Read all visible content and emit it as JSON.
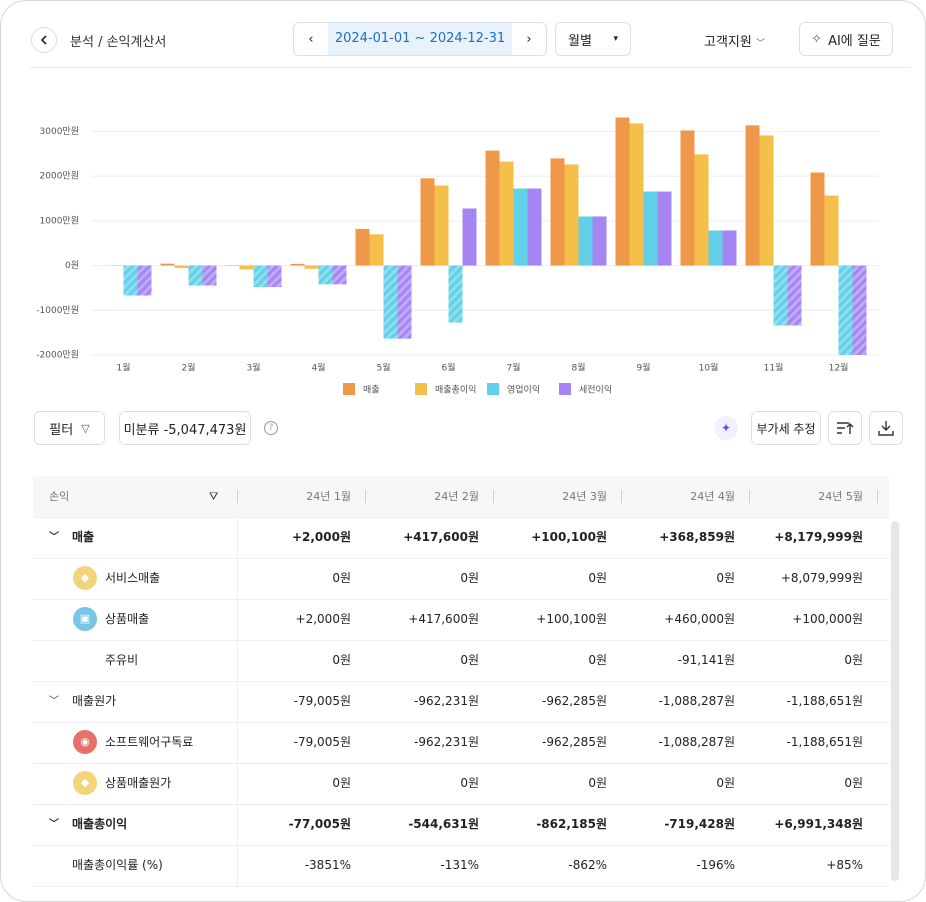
{
  "header": {
    "crumb": "분석",
    "separator": "/",
    "page": "손익계산서",
    "date_range": "2024-01-01 ~ 2024-12-31",
    "period": "월별",
    "support": "고객지원",
    "ai_button": "AI에 질문"
  },
  "chart_data": {
    "type": "bar",
    "categories": [
      "1월",
      "2월",
      "3월",
      "4월",
      "5월",
      "6월",
      "7월",
      "8월",
      "9월",
      "10월",
      "11월",
      "12월"
    ],
    "series": [
      {
        "name": "매출",
        "color": "#f0984a",
        "values": [
          0.2,
          41.76,
          10.01,
          36.89,
          818,
          1950,
          2570,
          2395,
          3310,
          3020,
          3135,
          2080
        ]
      },
      {
        "name": "매출총이익",
        "color": "#f5c04a",
        "values": [
          -7.7,
          -54.46,
          -86.22,
          -71.94,
          699.13,
          1790,
          2325,
          2260,
          3178,
          2485,
          2910,
          1565
        ]
      },
      {
        "name": "영업이익",
        "color": "#62d0e8",
        "values": [
          -670,
          -447,
          -480,
          -420,
          -1635,
          -1275,
          1722,
          1097,
          1655,
          784,
          -1340,
          -2000
        ]
      },
      {
        "name": "세전이익",
        "color": "#a585f2",
        "values": [
          -670,
          -447,
          -480,
          -420,
          -1635,
          1275,
          1722,
          1097,
          1655,
          784,
          -1340,
          -2000
        ]
      }
    ],
    "ylim": [
      -2000,
      3500
    ],
    "yticks": [
      {
        "value": -2000,
        "label": "-2000만원"
      },
      {
        "value": -1000,
        "label": "-1000만원"
      },
      {
        "value": 0,
        "label": "0원"
      },
      {
        "value": 1000,
        "label": "1000만원"
      },
      {
        "value": 2000,
        "label": "2000만원"
      },
      {
        "value": 3000,
        "label": "3000만원"
      }
    ],
    "grid": true,
    "legend": "bottom"
  },
  "toolbar": {
    "filter": "필터",
    "unclassified": "미분류 -5,047,473원",
    "vat": "부가세 추정"
  },
  "table": {
    "header": [
      "손익",
      "24년 1월",
      "24년 2월",
      "24년 3월",
      "24년 4월",
      "24년 5월"
    ],
    "rows": [
      {
        "label": "매출",
        "cells": [
          "+2,000원",
          "+417,600원",
          "+100,100원",
          "+368,859원",
          "+8,179,999원"
        ]
      },
      {
        "label": "서비스매출",
        "cells": [
          "0원",
          "0원",
          "0원",
          "0원",
          "+8,079,999원"
        ]
      },
      {
        "label": "상품매출",
        "cells": [
          "+2,000원",
          "+417,600원",
          "+100,100원",
          "+460,000원",
          "+100,000원"
        ]
      },
      {
        "label": "주유비",
        "cells": [
          "0원",
          "0원",
          "0원",
          "-91,141원",
          "0원"
        ]
      },
      {
        "label": "매출원가",
        "cells": [
          "-79,005원",
          "-962,231원",
          "-962,285원",
          "-1,088,287원",
          "-1,188,651원"
        ]
      },
      {
        "label": "소프트웨어구독료",
        "cells": [
          "-79,005원",
          "-962,231원",
          "-962,285원",
          "-1,088,287원",
          "-1,188,651원"
        ]
      },
      {
        "label": "상품매출원가",
        "cells": [
          "0원",
          "0원",
          "0원",
          "0원",
          "0원"
        ]
      },
      {
        "label": "매출총이익",
        "cells": [
          "-77,005원",
          "-544,631원",
          "-862,185원",
          "-719,428원",
          "+6,991,348원"
        ]
      },
      {
        "label": "매출총이익률 (%)",
        "cells": [
          "-3851%",
          "-131%",
          "-862%",
          "-196%",
          "+85%"
        ]
      }
    ]
  }
}
